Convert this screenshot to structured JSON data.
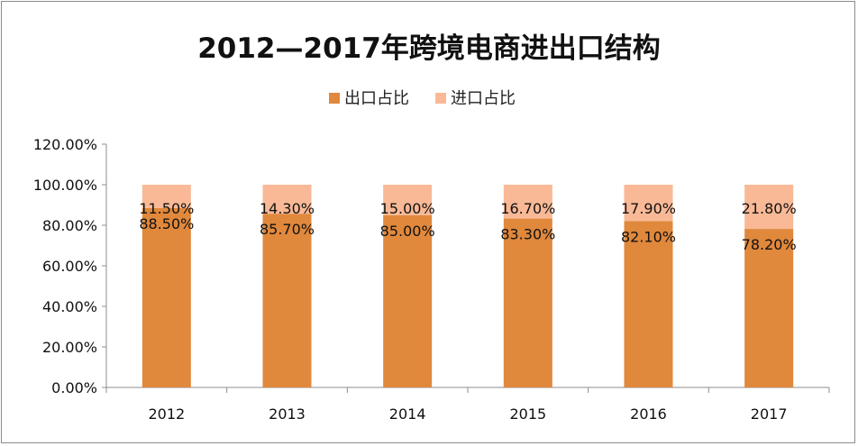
{
  "chart_data": {
    "type": "bar",
    "stacked": true,
    "title": "2012—2017年跨境电商进出口结构",
    "categories": [
      "2012",
      "2013",
      "2014",
      "2015",
      "2016",
      "2017"
    ],
    "series": [
      {
        "name": "出口占比",
        "values": [
          88.5,
          85.7,
          85.0,
          83.3,
          82.1,
          78.2
        ],
        "labels": [
          "88.50%",
          "85.70%",
          "85.00%",
          "83.30%",
          "82.10%",
          "78.20%"
        ],
        "color": "#E0883C"
      },
      {
        "name": "进口占比",
        "values": [
          11.5,
          14.3,
          15.0,
          16.7,
          17.9,
          21.8
        ],
        "labels": [
          "11.50%",
          "14.30%",
          "15.00%",
          "16.70%",
          "17.90%",
          "21.80%"
        ],
        "color": "#F9B996"
      }
    ],
    "yticks": [
      "0.00%",
      "20.00%",
      "40.00%",
      "60.00%",
      "80.00%",
      "100.00%",
      "120.00%"
    ],
    "ylim": [
      0,
      120
    ],
    "grid": false,
    "legend_position": "top-center"
  }
}
